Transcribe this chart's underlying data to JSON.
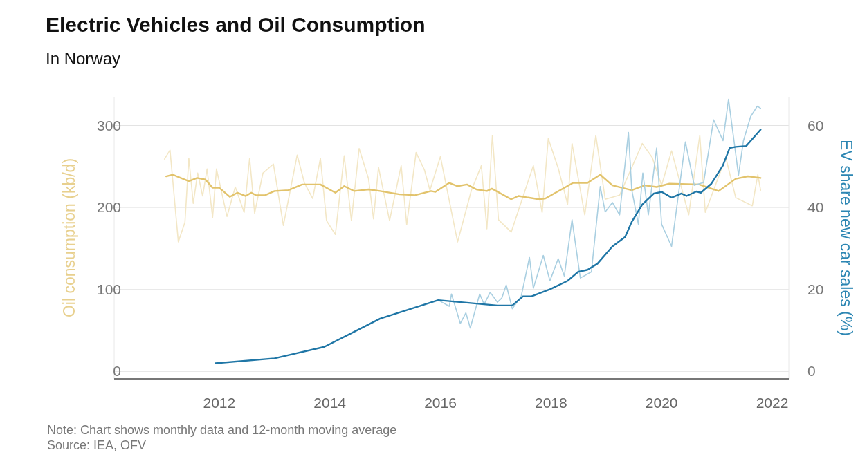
{
  "chart_data": {
    "type": "line",
    "title": "Electric Vehicles and Oil Consumption",
    "subtitle": "In Norway",
    "ylabel": "Oil consumption (kb/d)",
    "y2label": "EV share new car sales (%)",
    "xlim": [
      2010.1,
      2022.3
    ],
    "xticks": [
      2012,
      2014,
      2016,
      2018,
      2020,
      2022
    ],
    "ylim": [
      -9,
      335
    ],
    "yticks": [
      0,
      100,
      200,
      300
    ],
    "y2lim": [
      -1.8,
      67
    ],
    "y2ticks": [
      0,
      20,
      40,
      60
    ],
    "grid": "y",
    "marker": "none",
    "line_style": "solid",
    "annotations": [
      "Note: Chart shows monthly data and 12-month moving average",
      "Source: IEA, OFV"
    ],
    "series": [
      {
        "color": "#f3e7c6",
        "x": [
          2011.01,
          2011.11,
          2011.26,
          2011.38,
          2011.45,
          2011.53,
          2011.61,
          2011.7,
          2011.78,
          2011.88,
          2011.95,
          2012.14,
          2012.29,
          2012.45,
          2012.55,
          2012.64,
          2012.79,
          2012.98,
          2013.16,
          2013.41,
          2013.54,
          2013.69,
          2013.83,
          2013.94,
          2014.1,
          2014.26,
          2014.39,
          2014.53,
          2014.7,
          2014.79,
          2014.88,
          2015.08,
          2015.29,
          2015.39,
          2015.56,
          2015.71,
          2015.81,
          2016.0,
          2016.31,
          2016.56,
          2016.74,
          2016.84,
          2016.94,
          2017.05,
          2017.28,
          2017.68,
          2017.84,
          2017.95,
          2018.13,
          2018.3,
          2018.38,
          2018.61,
          2018.81,
          2018.98,
          2019.24,
          2019.65,
          2019.83,
          2020.0,
          2020.18,
          2020.49,
          2020.69,
          2020.79,
          2021.16,
          2021.34,
          2021.64,
          2021.74,
          2021.79
        ],
        "values": [
          259,
          270,
          158,
          182,
          260,
          205,
          242,
          214,
          247,
          188,
          247,
          189,
          225,
          194,
          260,
          193,
          242,
          253,
          178,
          264,
          230,
          211,
          260,
          184,
          167,
          263,
          184,
          272,
          235,
          186,
          249,
          184,
          251,
          179,
          267,
          246,
          221,
          262,
          158,
          221,
          251,
          174,
          288,
          185,
          170,
          251,
          194,
          284,
          248,
          204,
          278,
          191,
          288,
          210,
          215,
          278,
          261,
          227,
          269,
          191,
          288,
          194,
          261,
          212,
          202,
          240,
          221
        ]
      },
      {
        "color": "#e2c36c",
        "x": [
          2011.04,
          2011.16,
          2011.45,
          2011.6,
          2011.75,
          2011.88,
          2012.0,
          2012.19,
          2012.33,
          2012.48,
          2012.58,
          2012.66,
          2012.83,
          2013.0,
          2013.25,
          2013.5,
          2013.66,
          2013.83,
          2014.1,
          2014.26,
          2014.44,
          2014.7,
          2014.91,
          2015.26,
          2015.54,
          2015.83,
          2015.91,
          2016.16,
          2016.31,
          2016.48,
          2016.65,
          2016.84,
          2016.93,
          2017.28,
          2017.41,
          2017.78,
          2017.9,
          2018.4,
          2018.66,
          2018.89,
          2019.11,
          2019.46,
          2019.69,
          2019.91,
          2020.14,
          2020.68,
          2020.9,
          2021.03,
          2021.34,
          2021.56,
          2021.79
        ],
        "values": [
          238,
          240,
          232,
          236,
          234,
          224,
          224,
          213,
          218,
          214,
          218,
          215,
          215,
          220,
          221,
          228,
          228,
          228,
          218,
          226,
          220,
          222,
          220,
          216,
          215,
          220,
          219,
          230,
          226,
          228,
          222,
          220,
          223,
          210,
          214,
          210,
          211,
          230,
          230,
          240,
          227,
          221,
          227,
          225,
          229,
          228,
          223,
          220,
          235,
          238,
          236
        ]
      },
      {
        "axis": "y2",
        "color": "#a9cfe1",
        "x": [
          2015.96,
          2016.16,
          2016.2,
          2016.36,
          2016.46,
          2016.54,
          2016.71,
          2016.79,
          2016.9,
          2017.03,
          2017.11,
          2017.19,
          2017.3,
          2017.46,
          2017.61,
          2017.68,
          2017.86,
          2017.98,
          2018.13,
          2018.24,
          2018.38,
          2018.53,
          2018.73,
          2018.89,
          2018.98,
          2019.11,
          2019.24,
          2019.4,
          2019.46,
          2019.58,
          2019.66,
          2019.76,
          2019.91,
          2020.0,
          2020.18,
          2020.43,
          2020.59,
          2020.76,
          2020.94,
          2021.11,
          2021.21,
          2021.39,
          2021.48,
          2021.61,
          2021.73,
          2021.79
        ],
        "values": [
          17.4,
          15.9,
          18.9,
          11.7,
          14.3,
          10.6,
          18.9,
          16.4,
          19.3,
          16.9,
          17.9,
          21.1,
          15.3,
          18.3,
          27.8,
          20.3,
          28.3,
          22.1,
          27.5,
          23.3,
          37.0,
          22.8,
          24.3,
          45.1,
          38.9,
          41.2,
          38.2,
          58.3,
          44.3,
          35.9,
          48.4,
          38.2,
          54.5,
          35.9,
          30.5,
          56.0,
          45.4,
          46.1,
          61.4,
          56.3,
          66.4,
          47.9,
          56.3,
          62.2,
          64.7,
          64.2
        ]
      },
      {
        "axis": "y2",
        "color": "#1f76a6",
        "x": [
          2011.93,
          2013.0,
          2013.9,
          2014.91,
          2015.96,
          2017.03,
          2017.3,
          2017.49,
          2017.64,
          2017.99,
          2018.3,
          2018.49,
          2018.66,
          2018.84,
          2019.11,
          2019.34,
          2019.46,
          2019.65,
          2019.86,
          2020.0,
          2020.18,
          2020.36,
          2020.45,
          2020.63,
          2020.71,
          2020.9,
          2021.11,
          2021.23,
          2021.34,
          2021.53,
          2021.79
        ],
        "values": [
          2.0,
          3.2,
          6.0,
          12.9,
          17.4,
          16.1,
          16.1,
          18.3,
          18.3,
          20.1,
          22.1,
          24.3,
          24.8,
          26.3,
          30.5,
          32.8,
          36.5,
          40.7,
          43.4,
          43.8,
          42.4,
          43.4,
          42.8,
          43.9,
          43.6,
          45.8,
          50.3,
          54.5,
          54.8,
          55.0,
          59.0
        ]
      }
    ]
  }
}
